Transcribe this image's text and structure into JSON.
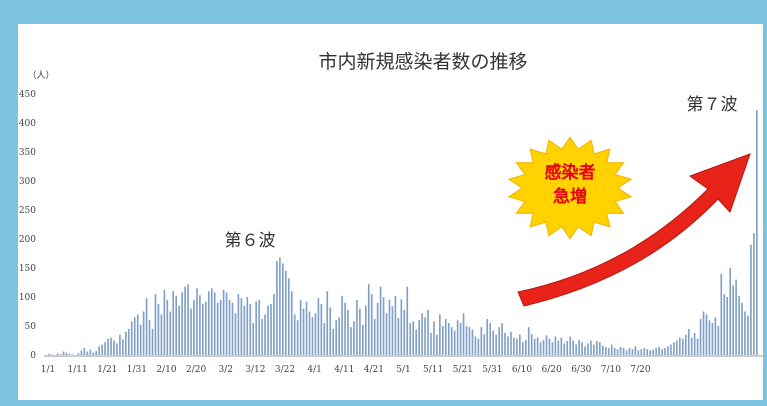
{
  "chart_data": {
    "type": "bar",
    "title": "市内新規感染者数の推移",
    "unit_label": "（人）",
    "ylim": [
      0,
      450
    ],
    "y_ticks": [
      0,
      50,
      100,
      150,
      200,
      250,
      300,
      350,
      400,
      450
    ],
    "x_tick_labels": [
      "1/1",
      "1/11",
      "1/21",
      "1/31",
      "2/10",
      "2/20",
      "3/2",
      "3/12",
      "3/22",
      "4/1",
      "4/11",
      "4/21",
      "5/1",
      "5/11",
      "5/21",
      "5/31",
      "6/10",
      "6/20",
      "6/30",
      "7/10",
      "7/20"
    ],
    "bar_color": "#7f9fc7",
    "annotations": {
      "wave6": "第６波",
      "wave7": "第７波",
      "burst_line1": "感染者",
      "burst_line2": "急増",
      "burst_color": "#ffd200",
      "arrow_color": "#e8231a"
    },
    "values": [
      2,
      1,
      0,
      3,
      1,
      6,
      4,
      2,
      1,
      0,
      3,
      8,
      12,
      6,
      9,
      4,
      7,
      15,
      18,
      22,
      28,
      30,
      25,
      20,
      35,
      27,
      40,
      45,
      58,
      65,
      70,
      52,
      75,
      98,
      60,
      45,
      105,
      88,
      70,
      112,
      95,
      75,
      110,
      102,
      85,
      108,
      118,
      122,
      80,
      95,
      115,
      103,
      88,
      92,
      110,
      115,
      108,
      90,
      95,
      112,
      108,
      95,
      90,
      72,
      105,
      98,
      85,
      100,
      88,
      55,
      92,
      95,
      62,
      70,
      85,
      88,
      105,
      162,
      168,
      158,
      145,
      132,
      110,
      70,
      60,
      95,
      80,
      92,
      75,
      65,
      72,
      98,
      88,
      55,
      110,
      82,
      45,
      60,
      65,
      102,
      90,
      78,
      48,
      58,
      95,
      80,
      52,
      85,
      122,
      105,
      62,
      90,
      118,
      100,
      72,
      95,
      84,
      102,
      64,
      96,
      78,
      118,
      55,
      58,
      44,
      60,
      72,
      65,
      78,
      38,
      58,
      35,
      70,
      50,
      62,
      55,
      48,
      42,
      60,
      55,
      72,
      50,
      48,
      44,
      32,
      28,
      48,
      36,
      62,
      55,
      42,
      35,
      48,
      55,
      38,
      32,
      40,
      30,
      28,
      35,
      22,
      26,
      48,
      36,
      28,
      30,
      22,
      26,
      34,
      28,
      22,
      32,
      25,
      30,
      20,
      24,
      32,
      25,
      18,
      26,
      22,
      15,
      20,
      25,
      18,
      24,
      22,
      16,
      14,
      12,
      18,
      12,
      10,
      14,
      12,
      8,
      12,
      10,
      15,
      8,
      10,
      12,
      10,
      8,
      9,
      12,
      14,
      10,
      12,
      15,
      18,
      22,
      25,
      30,
      28,
      35,
      45,
      30,
      38,
      28,
      62,
      75,
      70,
      60,
      55,
      65,
      50,
      140,
      105,
      100,
      150,
      120,
      130,
      102,
      90,
      75,
      68,
      190,
      210,
      422
    ]
  }
}
